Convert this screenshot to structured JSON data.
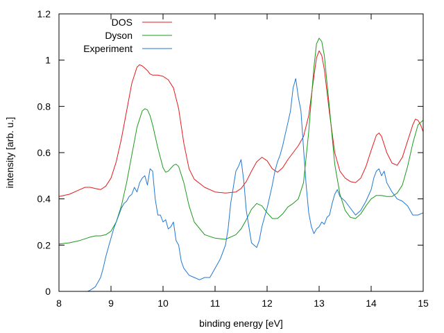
{
  "chart_data": {
    "type": "line",
    "title": "",
    "xlabel": "binding energy [eV]",
    "ylabel": "intensity [arb. u.]",
    "xlim": [
      8,
      15
    ],
    "ylim": [
      0,
      1.2
    ],
    "xticks": [
      8,
      9,
      10,
      11,
      12,
      13,
      14,
      15
    ],
    "xtick_labels": [
      "8",
      "9",
      "10",
      "11",
      "12",
      "13",
      "14",
      "15"
    ],
    "yticks": [
      0,
      0.2,
      0.4,
      0.6,
      0.8,
      1.0,
      1.2
    ],
    "ytick_labels": [
      "0",
      "0.2",
      "0.4",
      "0.6",
      "0.8",
      "1",
      "1.2"
    ],
    "grid": false,
    "legend_position": "top-left",
    "series": [
      {
        "name": "DOS",
        "color": "#e41a1c",
        "x": [
          8.0,
          8.2,
          8.4,
          8.5,
          8.6,
          8.7,
          8.8,
          8.9,
          9.0,
          9.1,
          9.2,
          9.3,
          9.4,
          9.5,
          9.55,
          9.6,
          9.65,
          9.7,
          9.75,
          9.8,
          9.9,
          10.0,
          10.1,
          10.2,
          10.3,
          10.4,
          10.5,
          10.6,
          10.8,
          11.0,
          11.2,
          11.4,
          11.5,
          11.6,
          11.7,
          11.8,
          11.9,
          12.0,
          12.1,
          12.2,
          12.3,
          12.4,
          12.5,
          12.6,
          12.7,
          12.8,
          12.9,
          12.95,
          13.0,
          13.05,
          13.1,
          13.2,
          13.3,
          13.4,
          13.5,
          13.6,
          13.7,
          13.8,
          13.9,
          14.0,
          14.1,
          14.15,
          14.2,
          14.3,
          14.4,
          14.5,
          14.6,
          14.7,
          14.8,
          14.85,
          14.9,
          14.95,
          15.0
        ],
        "y": [
          0.41,
          0.42,
          0.44,
          0.45,
          0.45,
          0.445,
          0.44,
          0.455,
          0.49,
          0.56,
          0.66,
          0.78,
          0.9,
          0.97,
          0.98,
          0.975,
          0.965,
          0.955,
          0.94,
          0.935,
          0.935,
          0.93,
          0.915,
          0.88,
          0.79,
          0.64,
          0.53,
          0.485,
          0.45,
          0.43,
          0.425,
          0.43,
          0.445,
          0.475,
          0.52,
          0.56,
          0.58,
          0.565,
          0.53,
          0.515,
          0.535,
          0.57,
          0.6,
          0.63,
          0.67,
          0.76,
          0.93,
          1.01,
          1.04,
          1.02,
          0.96,
          0.77,
          0.6,
          0.52,
          0.49,
          0.475,
          0.47,
          0.49,
          0.54,
          0.61,
          0.675,
          0.685,
          0.67,
          0.6,
          0.555,
          0.545,
          0.58,
          0.65,
          0.72,
          0.745,
          0.74,
          0.72,
          0.69
        ]
      },
      {
        "name": "Dyson",
        "color": "#1a9a1a",
        "x": [
          8.0,
          8.2,
          8.4,
          8.6,
          8.7,
          8.8,
          8.9,
          9.0,
          9.1,
          9.2,
          9.3,
          9.4,
          9.5,
          9.6,
          9.65,
          9.7,
          9.75,
          9.8,
          9.9,
          10.0,
          10.05,
          10.1,
          10.2,
          10.25,
          10.3,
          10.4,
          10.5,
          10.6,
          10.8,
          11.0,
          11.2,
          11.4,
          11.5,
          11.6,
          11.7,
          11.8,
          11.9,
          12.0,
          12.1,
          12.2,
          12.3,
          12.4,
          12.5,
          12.6,
          12.7,
          12.8,
          12.9,
          12.95,
          13.0,
          13.05,
          13.1,
          13.2,
          13.3,
          13.4,
          13.5,
          13.6,
          13.7,
          13.8,
          13.9,
          14.0,
          14.1,
          14.2,
          14.3,
          14.4,
          14.5,
          14.6,
          14.7,
          14.8,
          14.9,
          15.0
        ],
        "y": [
          0.205,
          0.21,
          0.22,
          0.235,
          0.24,
          0.24,
          0.245,
          0.26,
          0.3,
          0.37,
          0.47,
          0.59,
          0.71,
          0.78,
          0.79,
          0.785,
          0.76,
          0.72,
          0.62,
          0.535,
          0.515,
          0.52,
          0.545,
          0.55,
          0.54,
          0.47,
          0.37,
          0.3,
          0.245,
          0.23,
          0.225,
          0.245,
          0.27,
          0.31,
          0.355,
          0.38,
          0.37,
          0.34,
          0.315,
          0.315,
          0.335,
          0.365,
          0.38,
          0.4,
          0.47,
          0.69,
          0.97,
          1.07,
          1.095,
          1.08,
          1.02,
          0.79,
          0.55,
          0.42,
          0.35,
          0.32,
          0.315,
          0.335,
          0.37,
          0.4,
          0.415,
          0.415,
          0.41,
          0.41,
          0.425,
          0.46,
          0.54,
          0.64,
          0.72,
          0.74
        ]
      },
      {
        "name": "Experiment",
        "color": "#1f77d4",
        "x": [
          8.55,
          8.6,
          8.7,
          8.8,
          8.85,
          8.9,
          8.95,
          9.0,
          9.05,
          9.1,
          9.15,
          9.2,
          9.25,
          9.3,
          9.35,
          9.4,
          9.45,
          9.5,
          9.55,
          9.6,
          9.65,
          9.7,
          9.75,
          9.8,
          9.85,
          9.9,
          9.95,
          10.0,
          10.05,
          10.1,
          10.15,
          10.2,
          10.25,
          10.3,
          10.35,
          10.4,
          10.5,
          10.6,
          10.7,
          10.8,
          10.9,
          11.0,
          11.05,
          11.1,
          11.15,
          11.2,
          11.25,
          11.3,
          11.35,
          11.4,
          11.45,
          11.5,
          11.55,
          11.6,
          11.7,
          11.8,
          11.85,
          11.9,
          11.95,
          12.0,
          12.05,
          12.1,
          12.15,
          12.2,
          12.25,
          12.3,
          12.35,
          12.4,
          12.45,
          12.5,
          12.55,
          12.6,
          12.65,
          12.7,
          12.75,
          12.8,
          12.85,
          12.9,
          12.95,
          13.0,
          13.05,
          13.1,
          13.15,
          13.2,
          13.25,
          13.3,
          13.35,
          13.4,
          13.5,
          13.6,
          13.7,
          13.8,
          13.9,
          14.0,
          14.05,
          14.1,
          14.15,
          14.2,
          14.25,
          14.3,
          14.4,
          14.5,
          14.6,
          14.7,
          14.8,
          14.9,
          15.0
        ],
        "y": [
          0.0,
          0.005,
          0.02,
          0.06,
          0.1,
          0.15,
          0.19,
          0.23,
          0.27,
          0.3,
          0.33,
          0.36,
          0.38,
          0.39,
          0.41,
          0.42,
          0.45,
          0.43,
          0.47,
          0.49,
          0.5,
          0.46,
          0.53,
          0.52,
          0.4,
          0.33,
          0.33,
          0.3,
          0.31,
          0.27,
          0.28,
          0.3,
          0.22,
          0.2,
          0.13,
          0.1,
          0.07,
          0.06,
          0.05,
          0.06,
          0.06,
          0.1,
          0.12,
          0.14,
          0.17,
          0.2,
          0.27,
          0.38,
          0.45,
          0.52,
          0.54,
          0.57,
          0.48,
          0.35,
          0.21,
          0.19,
          0.22,
          0.28,
          0.32,
          0.36,
          0.41,
          0.46,
          0.52,
          0.56,
          0.59,
          0.63,
          0.68,
          0.73,
          0.78,
          0.88,
          0.92,
          0.84,
          0.78,
          0.62,
          0.46,
          0.34,
          0.28,
          0.25,
          0.27,
          0.28,
          0.3,
          0.29,
          0.32,
          0.33,
          0.38,
          0.42,
          0.44,
          0.41,
          0.39,
          0.36,
          0.33,
          0.35,
          0.39,
          0.44,
          0.49,
          0.52,
          0.53,
          0.5,
          0.52,
          0.47,
          0.43,
          0.4,
          0.39,
          0.37,
          0.33,
          0.33,
          0.34
        ]
      }
    ]
  }
}
